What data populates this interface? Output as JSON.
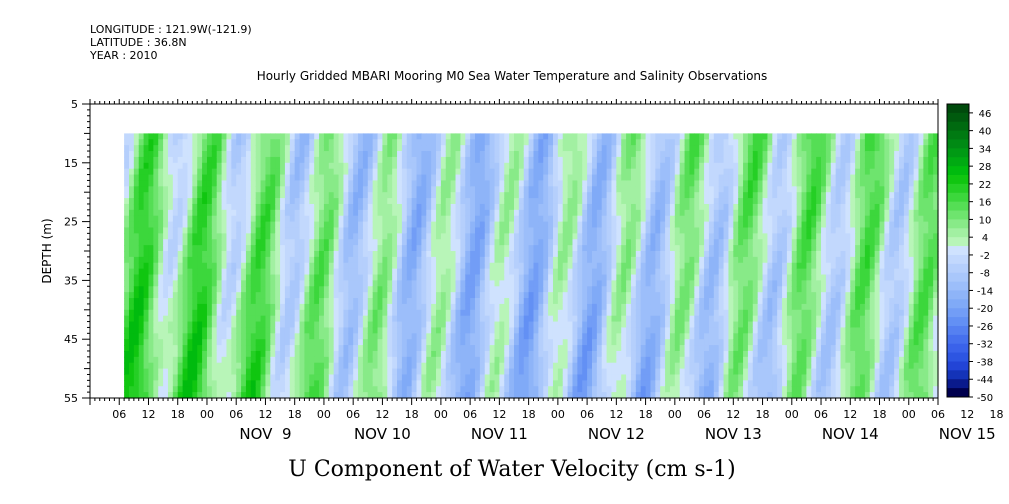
{
  "header": {
    "longitude": "LONGITUDE : 121.9W(-121.9)",
    "latitude": "LATITUDE : 36.8N",
    "year": "YEAR : 2010"
  },
  "chart_data": {
    "type": "heatmap",
    "title": "Hourly Gridded MBARI Mooring M0 Sea Water Temperature and Salinity Observations",
    "xlabel": "U Component of Water Velocity (cm s-1)",
    "ylabel": "DEPTH (m)",
    "x_range_hours_from_nov8_00": [
      0,
      174
    ],
    "ylim": [
      5,
      55
    ],
    "y_inverted": true,
    "y_ticks": [
      "5",
      "15",
      "25",
      "35",
      "45",
      "55"
    ],
    "x_hour_ticks": [
      "06",
      "12",
      "18",
      "00",
      "06",
      "12",
      "18",
      "00",
      "06",
      "12",
      "18",
      "00",
      "06",
      "12",
      "18",
      "00",
      "06",
      "12",
      "18",
      "00",
      "06",
      "12",
      "18",
      "00",
      "06",
      "12",
      "18",
      "00",
      "06",
      "12",
      "18",
      "00"
    ],
    "x_day_labels": [
      "NOV  9",
      "NOV 10",
      "NOV 11",
      "NOV 12",
      "NOV 13",
      "NOV 14",
      "NOV 15"
    ],
    "data_depth_range": [
      10,
      55
    ],
    "data_start_hour": 7,
    "colorbar": {
      "labels": [
        "46",
        "40",
        "34",
        "28",
        "22",
        "16",
        "10",
        "4",
        "-2",
        "-8",
        "-14",
        "-20",
        "-26",
        "-32",
        "-38",
        "-44",
        "-50"
      ],
      "levels": [
        -50,
        -47,
        -44,
        -41,
        -38,
        -35,
        -32,
        -29,
        -26,
        -23,
        -20,
        -17,
        -14,
        -11,
        -8,
        -5,
        -2,
        1,
        4,
        7,
        10,
        13,
        16,
        19,
        22,
        25,
        28,
        31,
        34,
        37,
        40,
        43,
        46,
        49
      ],
      "colors": [
        "#00004e",
        "#0a1a8c",
        "#1433b8",
        "#2244d6",
        "#2d55e2",
        "#3a62ea",
        "#4670ee",
        "#5580f1",
        "#6390f4",
        "#729df6",
        "#80aaf7",
        "#8eb4f8",
        "#9cbefa",
        "#a9c7fb",
        "#b5cffc",
        "#c2d8fd",
        "#cfe2fe",
        "#b8f5b8",
        "#a2f0a2",
        "#88ea88",
        "#6ee46e",
        "#55de55",
        "#3cd73c",
        "#25cf25",
        "#10c610",
        "#00bb0e",
        "#00aa12",
        "#009a14",
        "#008a14",
        "#007a12",
        "#006a10",
        "#005a0e",
        "#004a0c"
      ]
    }
  }
}
